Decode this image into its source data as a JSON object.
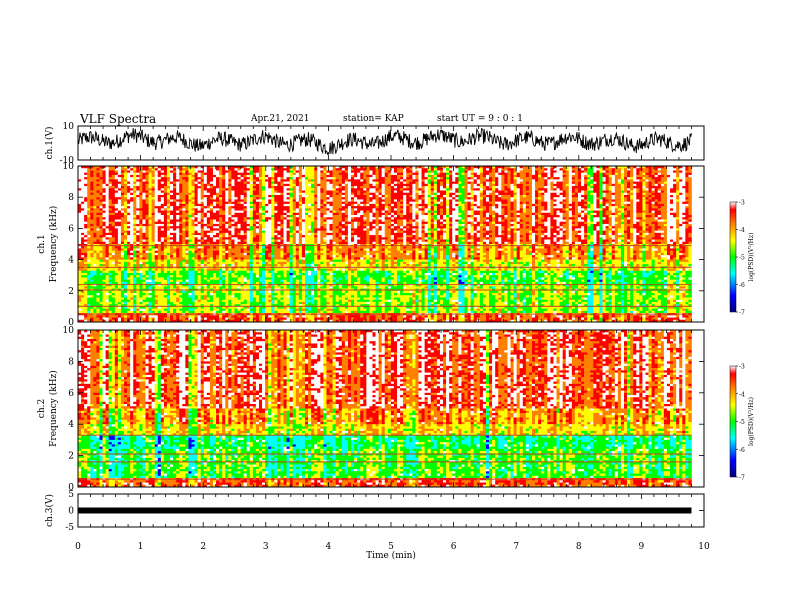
{
  "header": {
    "title": "VLF Spectra",
    "date": "Apr.21, 2021",
    "station": "station= KAP",
    "start": "start  UT =   9 : 0  : 1"
  },
  "chart_data": [
    {
      "type": "line",
      "panel": "ch1-waveform",
      "ylabel": "ch.1(V)",
      "ylim": [
        -10,
        10
      ],
      "yticks": [
        "10",
        "-10"
      ],
      "xlim": [
        0,
        10
      ],
      "x_end": 9.8,
      "series": [
        {
          "values_description_free": true,
          "x": [
            0,
            1,
            2,
            3,
            4,
            5,
            6,
            7,
            8,
            9,
            9.8
          ],
          "values": [
            1,
            3,
            0,
            2,
            -1,
            2,
            3,
            1,
            2,
            0,
            1
          ]
        }
      ],
      "color": "#000000"
    },
    {
      "type": "heatmap",
      "panel": "ch1-spectrogram",
      "xlim": [
        0,
        10
      ],
      "x_end": 9.8,
      "ylim": [
        0,
        10
      ],
      "yticks": [
        "0",
        "2",
        "4",
        "6",
        "8",
        "10"
      ],
      "ylabel_lines": [
        "ch.1",
        "Frequency  (kHz)"
      ],
      "colorbar": {
        "ticks": [
          "-3",
          "-4",
          "-5",
          "-6",
          "-7"
        ],
        "range": [
          -7,
          -3
        ],
        "label": "log(PSD)(V²/Hz)"
      }
    },
    {
      "type": "heatmap",
      "panel": "ch2-spectrogram",
      "xlim": [
        0,
        10
      ],
      "x_end": 9.8,
      "ylim": [
        0,
        10
      ],
      "yticks": [
        "0",
        "2",
        "4",
        "6",
        "8",
        "10"
      ],
      "ylabel_lines": [
        "ch.2",
        "Frequency  (kHz)"
      ],
      "colorbar": {
        "ticks": [
          "-3",
          "-4",
          "-5",
          "-6",
          "-7"
        ],
        "range": [
          -7,
          -3
        ],
        "label": "log(PSD)(V²/Hz)"
      }
    },
    {
      "type": "line",
      "panel": "ch3-waveform",
      "ylabel": "ch.3(V)",
      "ylim": [
        -5,
        5
      ],
      "yticks": [
        "5",
        "0",
        "-5"
      ],
      "xlim": [
        0,
        10
      ],
      "x_end": 9.8,
      "series": [
        {
          "x": [
            0,
            9.8
          ],
          "values": [
            0,
            0
          ]
        }
      ],
      "color": "#000000"
    }
  ],
  "xaxis": {
    "label": "Time  (min)",
    "ticks": [
      "0",
      "1",
      "2",
      "3",
      "4",
      "5",
      "6",
      "7",
      "8",
      "9",
      "10"
    ]
  },
  "colors": {
    "scale": [
      "#000080",
      "#0000ff",
      "#00ffff",
      "#00ff00",
      "#ffff00",
      "#ff8000",
      "#ff0000",
      "#ffffff"
    ]
  }
}
